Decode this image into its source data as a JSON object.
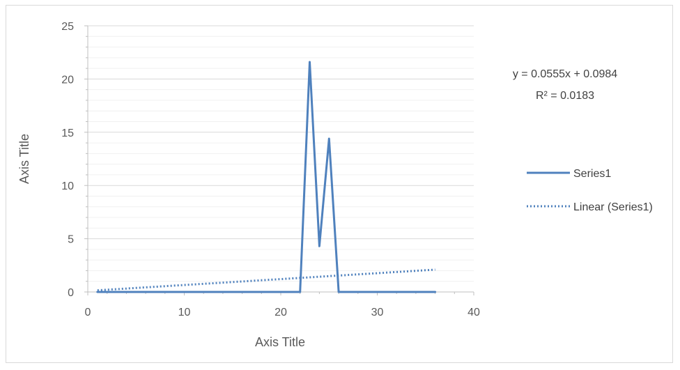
{
  "chart_data": {
    "type": "line",
    "title": "",
    "xlabel": "Axis Title",
    "ylabel": "Axis Title",
    "xlim": [
      0,
      40
    ],
    "ylim": [
      0,
      25
    ],
    "x_ticks": [
      "0",
      "10",
      "20",
      "30",
      "40"
    ],
    "y_ticks": [
      "0",
      "5",
      "10",
      "15",
      "20",
      "25"
    ],
    "grid": true,
    "legend_position": "right",
    "series": [
      {
        "name": "Series1",
        "color": "#4f81bd",
        "x": [
          1,
          2,
          3,
          4,
          5,
          6,
          7,
          8,
          9,
          10,
          11,
          12,
          13,
          14,
          15,
          16,
          17,
          18,
          19,
          20,
          21,
          22,
          23,
          24,
          25,
          26,
          27,
          28,
          29,
          30,
          31,
          32,
          33,
          34,
          35,
          36
        ],
        "y": [
          0,
          0,
          0,
          0,
          0,
          0,
          0,
          0,
          0,
          0,
          0,
          0,
          0,
          0,
          0,
          0,
          0,
          0,
          0,
          0,
          0,
          0,
          21.6,
          4.3,
          14.4,
          0,
          0,
          0,
          0,
          0,
          0,
          0,
          0,
          0,
          0,
          0
        ]
      }
    ],
    "trendline": {
      "name": "Linear (Series1)",
      "color": "#4f81bd",
      "style": "dotted",
      "slope": 0.0555,
      "intercept": 0.0984,
      "x_range": [
        1,
        36
      ],
      "equation": "y = 0.0555x + 0.0984",
      "r_squared": "R² = 0.0183"
    }
  }
}
